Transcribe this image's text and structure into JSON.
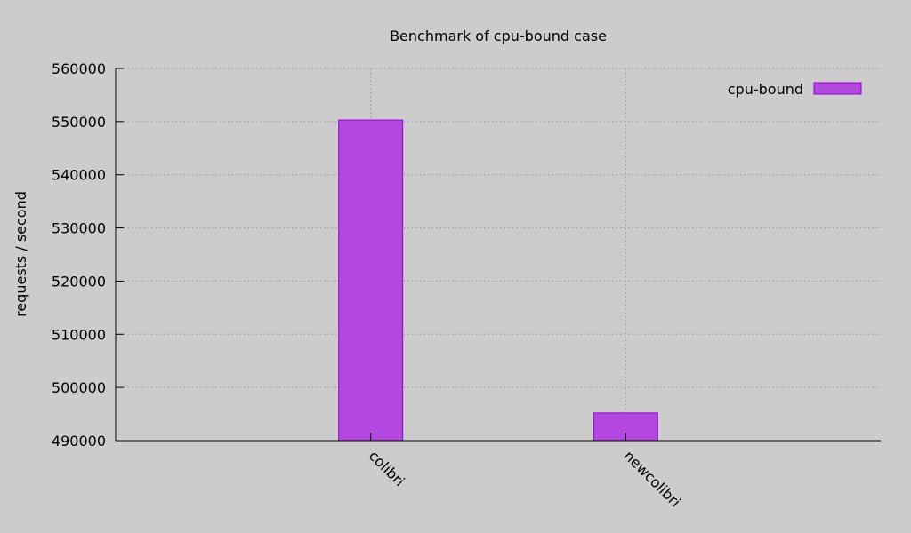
{
  "chart_data": {
    "type": "bar",
    "title": "Benchmark of cpu-bound case",
    "xlabel": "",
    "ylabel": "requests / second",
    "categories": [
      "colibri",
      "newcolibri"
    ],
    "series": [
      {
        "name": "cpu-bound",
        "values": [
          550300,
          495200
        ],
        "color": "#b348e0"
      }
    ],
    "ylim": [
      490000,
      560000
    ],
    "yticks": [
      490000,
      500000,
      510000,
      520000,
      530000,
      540000,
      550000,
      560000
    ],
    "grid": true,
    "legend_position": "top-right",
    "bar_stroke_color": "#9400d3"
  }
}
